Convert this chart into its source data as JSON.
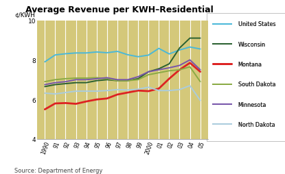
{
  "title": "Average Revenue per KWH–Residential",
  "ylabel": "¢/KWH",
  "source": "Source: Department of Energy",
  "background_color": "#d4c87a",
  "years": [
    1990,
    1991,
    1992,
    1993,
    1994,
    1995,
    1996,
    1997,
    1998,
    1999,
    2000,
    2001,
    2002,
    2003,
    2004,
    2005
  ],
  "xlabels": [
    "1990",
    "91",
    "92",
    "93",
    "94",
    "95",
    "96",
    "97",
    "98",
    "99",
    "2000",
    "01",
    "02",
    "03",
    "04",
    "05"
  ],
  "ylim": [
    4,
    10
  ],
  "yticks": [
    4,
    6,
    8,
    10
  ],
  "series": [
    {
      "name": "United States",
      "color": "#4ab8d8",
      "linewidth": 1.4,
      "data": [
        7.9,
        8.25,
        8.31,
        8.35,
        8.35,
        8.4,
        8.36,
        8.43,
        8.26,
        8.16,
        8.24,
        8.58,
        8.3,
        8.5,
        8.65,
        8.55
      ]
    },
    {
      "name": "Wisconsin",
      "color": "#2a6030",
      "linewidth": 1.4,
      "data": [
        6.65,
        6.75,
        6.8,
        6.85,
        6.85,
        6.95,
        7.0,
        6.95,
        6.95,
        7.05,
        7.4,
        7.55,
        7.8,
        8.6,
        9.1,
        9.1
      ]
    },
    {
      "name": "Montana",
      "color": "#dd2222",
      "linewidth": 2.0,
      "data": [
        5.5,
        5.8,
        5.82,
        5.78,
        5.9,
        6.0,
        6.05,
        6.25,
        6.35,
        6.45,
        6.42,
        6.55,
        7.05,
        7.5,
        7.85,
        7.4
      ]
    },
    {
      "name": "South Dakota",
      "color": "#8aaa44",
      "linewidth": 1.4,
      "data": [
        6.9,
        7.0,
        7.05,
        7.08,
        7.08,
        7.1,
        7.05,
        6.95,
        6.95,
        7.0,
        7.25,
        7.35,
        7.45,
        7.5,
        7.65,
        6.9
      ]
    },
    {
      "name": "Minnesota",
      "color": "#7755aa",
      "linewidth": 1.4,
      "data": [
        6.75,
        6.85,
        6.9,
        7.0,
        7.0,
        7.05,
        7.1,
        7.0,
        7.0,
        7.15,
        7.4,
        7.5,
        7.6,
        7.72,
        8.0,
        7.5
      ]
    },
    {
      "name": "North Dakota",
      "color": "#aaccdd",
      "linewidth": 1.4,
      "data": [
        6.32,
        6.28,
        6.35,
        6.42,
        6.42,
        6.42,
        6.45,
        6.5,
        6.48,
        6.52,
        6.62,
        6.45,
        6.45,
        6.5,
        6.7,
        5.95
      ]
    }
  ]
}
